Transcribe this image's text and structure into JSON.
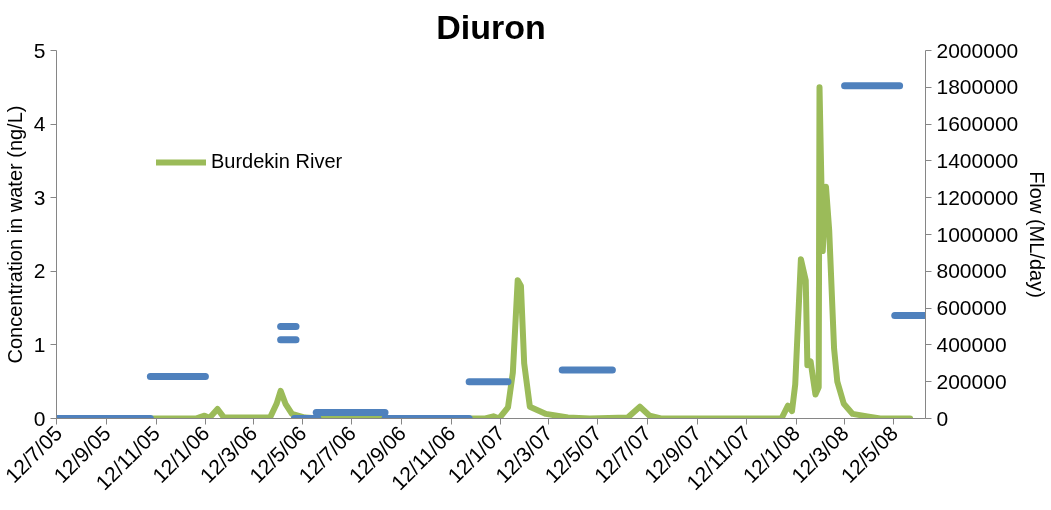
{
  "chart_data": {
    "type": "line",
    "title": "Diuron",
    "ylabel": "Concentration in water (ng/L)",
    "y2label": "Flow (ML/day)",
    "xlim": [
      "2005-07-12",
      "2008-06-20"
    ],
    "xticks": [
      {
        "value": "2005-07-12",
        "label": "12/7/05"
      },
      {
        "value": "2005-09-12",
        "label": "12/9/05"
      },
      {
        "value": "2005-11-12",
        "label": "12/11/05"
      },
      {
        "value": "2006-01-12",
        "label": "12/1/06"
      },
      {
        "value": "2006-03-12",
        "label": "12/3/06"
      },
      {
        "value": "2006-05-12",
        "label": "12/5/06"
      },
      {
        "value": "2006-07-12",
        "label": "12/7/06"
      },
      {
        "value": "2006-09-12",
        "label": "12/9/06"
      },
      {
        "value": "2006-11-12",
        "label": "12/11/06"
      },
      {
        "value": "2007-01-12",
        "label": "12/1/07"
      },
      {
        "value": "2007-03-12",
        "label": "12/3/07"
      },
      {
        "value": "2007-05-12",
        "label": "12/5/07"
      },
      {
        "value": "2007-07-12",
        "label": "12/7/07"
      },
      {
        "value": "2007-09-12",
        "label": "12/9/07"
      },
      {
        "value": "2007-11-12",
        "label": "12/11/07"
      },
      {
        "value": "2008-01-12",
        "label": "12/1/08"
      },
      {
        "value": "2008-03-12",
        "label": "12/3/08"
      },
      {
        "value": "2008-05-12",
        "label": "12/5/08"
      }
    ],
    "ylim": [
      0,
      5
    ],
    "yticks": [
      0,
      1,
      2,
      3,
      4,
      5
    ],
    "y2lim": [
      0,
      2000000
    ],
    "y2ticks": [
      0,
      200000,
      400000,
      600000,
      800000,
      1000000,
      1200000,
      1400000,
      1600000,
      1800000,
      2000000
    ],
    "grid": false,
    "legend": "top left",
    "marker": "none",
    "line_style": "solid",
    "series": [
      {
        "color": "#4f81bd",
        "x": [
          "2005-07-12",
          "2005-11-05"
        ],
        "values": [
          0,
          0
        ]
      },
      {
        "color": "#4f81bd",
        "x": [
          "2005-11-05",
          "2006-01-12"
        ],
        "values": [
          0.57,
          0.57
        ]
      },
      {
        "color": "#4f81bd",
        "x": [
          "2006-04-15",
          "2006-05-04"
        ],
        "values": [
          1.25,
          1.25
        ]
      },
      {
        "color": "#4f81bd",
        "x": [
          "2006-04-15",
          "2006-05-04"
        ],
        "values": [
          1.07,
          1.07
        ]
      },
      {
        "color": "#4f81bd",
        "x": [
          "2006-05-02",
          "2006-05-31"
        ],
        "values": [
          0,
          0
        ]
      },
      {
        "color": "#4f81bd",
        "x": [
          "2006-05-29",
          "2006-08-22"
        ],
        "values": [
          0.08,
          0.08
        ]
      },
      {
        "color": "#4f81bd",
        "x": [
          "2006-08-22",
          "2006-12-04"
        ],
        "values": [
          0,
          0
        ]
      },
      {
        "color": "#4f81bd",
        "x": [
          "2006-12-04",
          "2007-01-21"
        ],
        "values": [
          0.5,
          0.5
        ]
      },
      {
        "color": "#4f81bd",
        "x": [
          "2007-03-29",
          "2007-05-30"
        ],
        "values": [
          0.66,
          0.66
        ]
      },
      {
        "color": "#4f81bd",
        "x": [
          "2008-03-12",
          "2008-05-19"
        ],
        "values": [
          4.52,
          4.52
        ]
      },
      {
        "color": "#4f81bd",
        "x": [
          "2008-05-13",
          "2008-06-20"
        ],
        "values": [
          1.4,
          1.4
        ]
      },
      {
        "name": "Burdekin River",
        "color": "#9bbb59",
        "axis": "y2",
        "x": [
          "2005-07-12",
          "2005-12-31",
          "2006-01-11",
          "2006-01-17",
          "2006-01-27",
          "2006-02-04",
          "2006-04-02",
          "2006-04-10",
          "2006-04-15",
          "2006-04-21",
          "2006-04-29",
          "2006-05-15",
          "2006-06-04",
          "2006-12-24",
          "2007-01-03",
          "2007-01-10",
          "2007-01-21",
          "2007-01-27",
          "2007-02-02",
          "2007-02-06",
          "2007-02-10",
          "2007-02-17",
          "2007-03-09",
          "2007-04-05",
          "2007-05-02",
          "2007-06-18",
          "2007-07-03",
          "2007-07-15",
          "2007-07-29",
          "2007-12-25",
          "2008-01-02",
          "2008-01-07",
          "2008-01-11",
          "2008-01-18",
          "2008-01-24",
          "2008-01-26",
          "2008-01-30",
          "2008-02-05",
          "2008-02-09",
          "2008-02-10",
          "2008-02-14",
          "2008-02-18",
          "2008-02-22",
          "2008-02-28",
          "2008-03-03",
          "2008-03-11",
          "2008-03-22",
          "2008-04-11",
          "2008-04-25",
          "2008-06-01"
        ],
        "values": [
          0,
          0,
          15000,
          3000,
          52000,
          5000,
          5000,
          80000,
          150000,
          80000,
          25000,
          5000,
          0,
          0,
          12000,
          0,
          60000,
          250000,
          752000,
          720000,
          300000,
          64000,
          25000,
          5000,
          0,
          5000,
          64000,
          15000,
          0,
          0,
          70000,
          40000,
          185000,
          866000,
          750000,
          290000,
          310000,
          130000,
          170000,
          1800000,
          910000,
          1260000,
          1020000,
          380000,
          200000,
          80000,
          25000,
          10000,
          0,
          0
        ]
      }
    ]
  }
}
